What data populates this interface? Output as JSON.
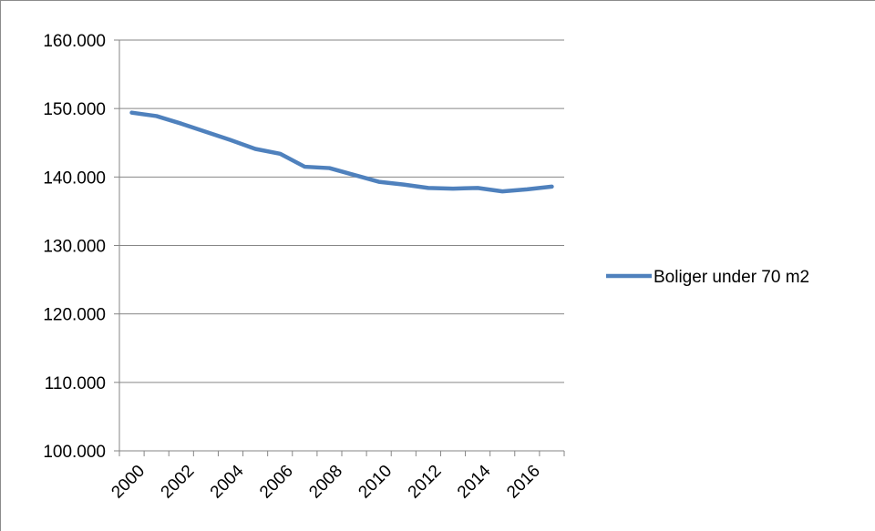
{
  "chart_data": {
    "type": "line",
    "title": "",
    "xlabel": "",
    "ylabel": "",
    "x": [
      2000,
      2001,
      2002,
      2003,
      2004,
      2005,
      2006,
      2007,
      2008,
      2009,
      2010,
      2011,
      2012,
      2013,
      2014,
      2015,
      2016,
      2017
    ],
    "x_tick_labels": [
      "2000",
      "2002",
      "2004",
      "2006",
      "2008",
      "2010",
      "2012",
      "2014",
      "2016"
    ],
    "y_tick_labels": [
      "160.000",
      "150.000",
      "140.000",
      "130.000",
      "120.000",
      "110.000",
      "100.000"
    ],
    "ylim": [
      100000,
      160000
    ],
    "y_ticks": [
      160000,
      150000,
      140000,
      130000,
      120000,
      110000,
      100000
    ],
    "grid": true,
    "legend_position": "right",
    "series": [
      {
        "name": "Boliger under 70 m2",
        "color": "#4f81bd",
        "values": [
          149400,
          148900,
          147800,
          146600,
          145400,
          144100,
          143400,
          141500,
          141300,
          140300,
          139300,
          138900,
          138400,
          138300,
          138400,
          137900,
          138200,
          138600
        ]
      }
    ]
  }
}
